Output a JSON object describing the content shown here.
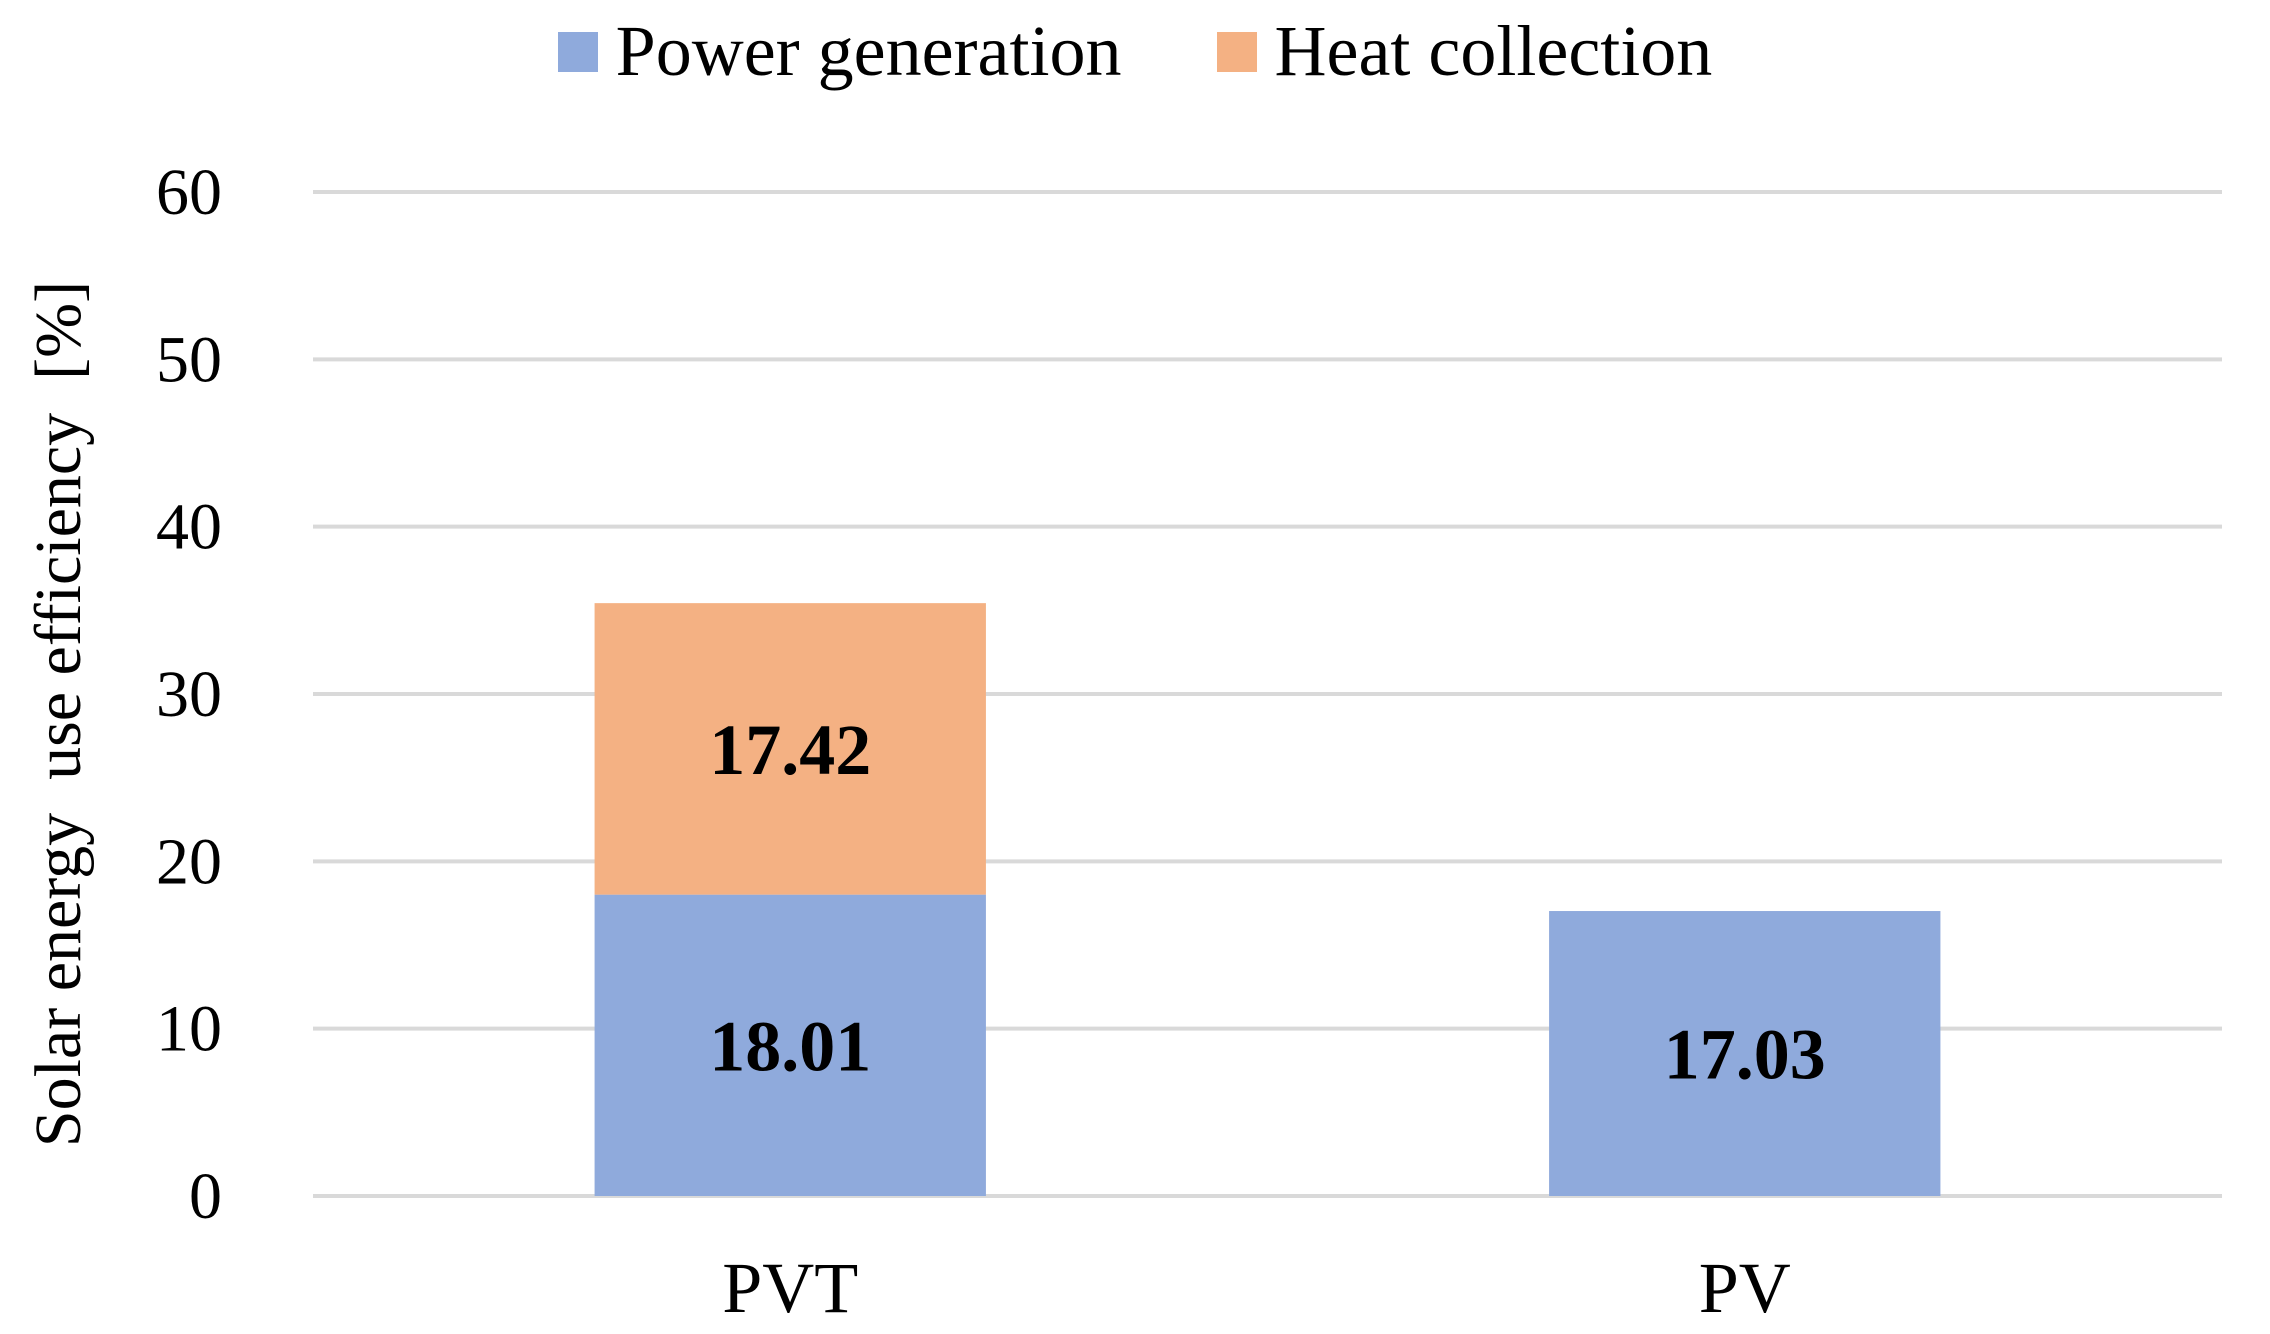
{
  "chart_data": {
    "type": "bar",
    "stacked": true,
    "title": "",
    "xlabel": "",
    "ylabel": "Solar energy  use efficiency  [%]",
    "ylim": [
      0,
      60
    ],
    "yticks": [
      0,
      10,
      20,
      30,
      40,
      50,
      60
    ],
    "ytick_labels": [
      "0",
      "10",
      "20",
      "30",
      "40",
      "50",
      "60"
    ],
    "grid": true,
    "legend_position": "top-center",
    "categories": [
      "PVT",
      "PV"
    ],
    "series": [
      {
        "name": "Power generation",
        "color": "#8faadc",
        "values": [
          18.01,
          17.03
        ],
        "labels": [
          "18.01",
          "17.03"
        ]
      },
      {
        "name": "Heat collection",
        "color": "#f4b183",
        "values": [
          17.42,
          null
        ],
        "labels": [
          "17.42",
          null
        ]
      }
    ]
  }
}
